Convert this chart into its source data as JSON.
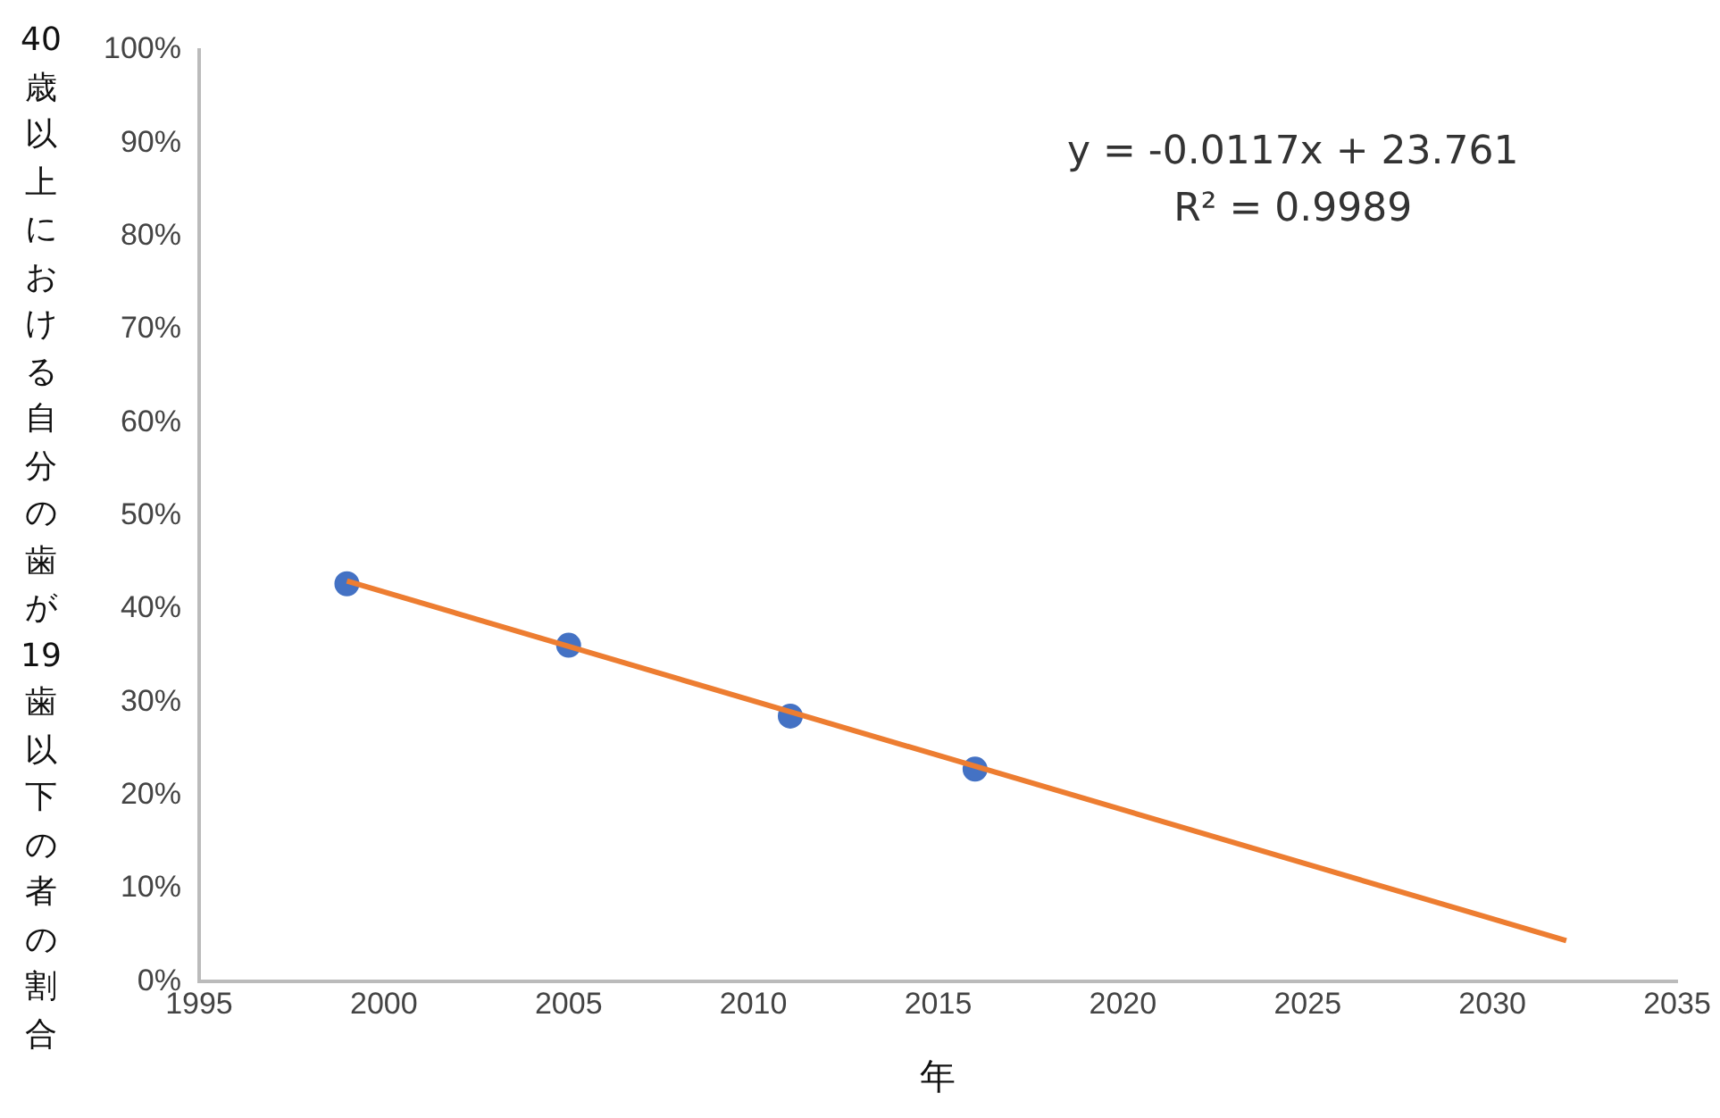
{
  "chart_data": {
    "type": "scatter",
    "xlabel": "年",
    "ylabel": "40歳以上における自分の歯が19歯以下の者の割合",
    "xlim": [
      1995,
      2035
    ],
    "xticks": [
      1995,
      2000,
      2005,
      2010,
      2015,
      2020,
      2025,
      2030,
      2035
    ],
    "ylim": [
      0,
      100
    ],
    "yticks": [
      {
        "value": 0,
        "label": "0%"
      },
      {
        "value": 10,
        "label": "10%"
      },
      {
        "value": 20,
        "label": "20%"
      },
      {
        "value": 30,
        "label": "30%"
      },
      {
        "value": 40,
        "label": "40%"
      },
      {
        "value": 50,
        "label": "50%"
      },
      {
        "value": 60,
        "label": "60%"
      },
      {
        "value": 70,
        "label": "70%"
      },
      {
        "value": 80,
        "label": "80%"
      },
      {
        "value": 90,
        "label": "90%"
      },
      {
        "value": 100,
        "label": "100%"
      }
    ],
    "grid": false,
    "legend": false,
    "series": [
      {
        "marker": "circle",
        "color": "#4472c4",
        "x": [
          1999,
          2005,
          2011,
          2016
        ],
        "values": [
          42.7,
          36.1,
          28.5,
          22.8
        ]
      },
      {
        "type": "line",
        "marker": "none",
        "color": "#ed7d31",
        "x": [
          1999,
          2032
        ],
        "values": [
          43.0,
          4.4
        ],
        "line_style": "solid"
      }
    ],
    "annotations": [
      "y = -0.0117x + 23.761",
      "R² = 0.9989"
    ]
  }
}
